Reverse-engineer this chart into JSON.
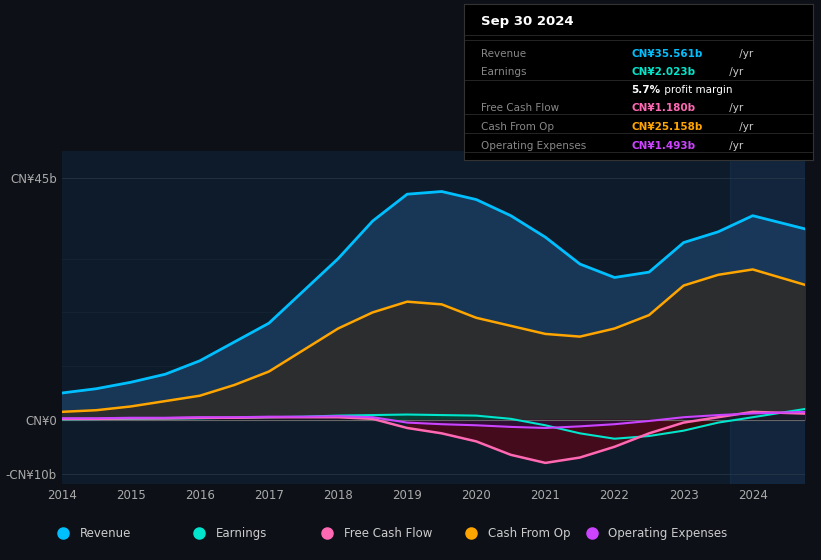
{
  "background_color": "#0d1117",
  "plot_bg_color": "#0d1b2a",
  "title": "Sep 30 2024",
  "years": [
    2014,
    2014.5,
    2015,
    2015.5,
    2016,
    2016.5,
    2017,
    2017.5,
    2018,
    2018.5,
    2019,
    2019.5,
    2020,
    2020.5,
    2021,
    2021.5,
    2022,
    2022.5,
    2023,
    2023.5,
    2024,
    2024.75
  ],
  "revenue": [
    5.0,
    5.8,
    7.0,
    8.5,
    11.0,
    14.5,
    18.0,
    24.0,
    30.0,
    37.0,
    42.0,
    42.5,
    41.0,
    38.0,
    34.0,
    29.0,
    26.5,
    27.5,
    33.0,
    35.0,
    38.0,
    35.561
  ],
  "cash_from_op": [
    1.5,
    1.8,
    2.5,
    3.5,
    4.5,
    6.5,
    9.0,
    13.0,
    17.0,
    20.0,
    22.0,
    21.5,
    19.0,
    17.5,
    16.0,
    15.5,
    17.0,
    19.5,
    25.0,
    27.0,
    28.0,
    25.158
  ],
  "earnings": [
    0.1,
    0.15,
    0.2,
    0.25,
    0.3,
    0.4,
    0.5,
    0.6,
    0.8,
    0.9,
    1.0,
    0.9,
    0.8,
    0.2,
    -1.0,
    -2.5,
    -3.5,
    -3.0,
    -2.0,
    -0.5,
    0.5,
    2.023
  ],
  "free_cash_flow": [
    0.2,
    0.2,
    0.3,
    0.3,
    0.4,
    0.4,
    0.5,
    0.5,
    0.5,
    0.2,
    -1.5,
    -2.5,
    -4.0,
    -6.5,
    -8.0,
    -7.0,
    -5.0,
    -2.5,
    -0.5,
    0.5,
    1.5,
    1.18
  ],
  "operating_expenses": [
    0.3,
    0.3,
    0.4,
    0.4,
    0.5,
    0.5,
    0.6,
    0.6,
    0.7,
    0.5,
    -0.5,
    -0.8,
    -1.0,
    -1.3,
    -1.5,
    -1.2,
    -0.8,
    -0.2,
    0.5,
    0.9,
    1.2,
    1.493
  ],
  "ylim": [
    -12,
    50
  ],
  "yticks": [
    -10,
    0,
    45
  ],
  "ytick_labels": [
    "-CN¥10b",
    "CN¥0",
    "CN¥45b"
  ],
  "xticks": [
    2014,
    2015,
    2016,
    2017,
    2018,
    2019,
    2020,
    2021,
    2022,
    2023,
    2024
  ],
  "revenue_color": "#00bfff",
  "cash_from_op_color": "#ffa500",
  "earnings_color": "#00e5cc",
  "free_cash_flow_color": "#ff69b4",
  "operating_expenses_color": "#cc44ff",
  "legend_items": [
    {
      "label": "Revenue",
      "color": "#00bfff"
    },
    {
      "label": "Earnings",
      "color": "#00e5cc"
    },
    {
      "label": "Free Cash Flow",
      "color": "#ff69b4"
    },
    {
      "label": "Cash From Op",
      "color": "#ffa500"
    },
    {
      "label": "Operating Expenses",
      "color": "#cc44ff"
    }
  ],
  "infobox_title": "Sep 30 2024",
  "infobox_rows": [
    {
      "label": "Revenue",
      "value": "CN¥35.561b",
      "unit": " /yr",
      "color": "#00bfff",
      "is_margin": false
    },
    {
      "label": "Earnings",
      "value": "CN¥2.023b",
      "unit": " /yr",
      "color": "#00e5cc",
      "is_margin": false
    },
    {
      "label": "",
      "value": "5.7%",
      "unit": " profit margin",
      "color": "#ffffff",
      "is_margin": true
    },
    {
      "label": "Free Cash Flow",
      "value": "CN¥1.180b",
      "unit": " /yr",
      "color": "#ff69b4",
      "is_margin": false
    },
    {
      "label": "Cash From Op",
      "value": "CN¥25.158b",
      "unit": " /yr",
      "color": "#ffa500",
      "is_margin": false
    },
    {
      "label": "Operating Expenses",
      "value": "CN¥1.493b",
      "unit": " /yr",
      "color": "#cc44ff",
      "is_margin": false
    }
  ]
}
